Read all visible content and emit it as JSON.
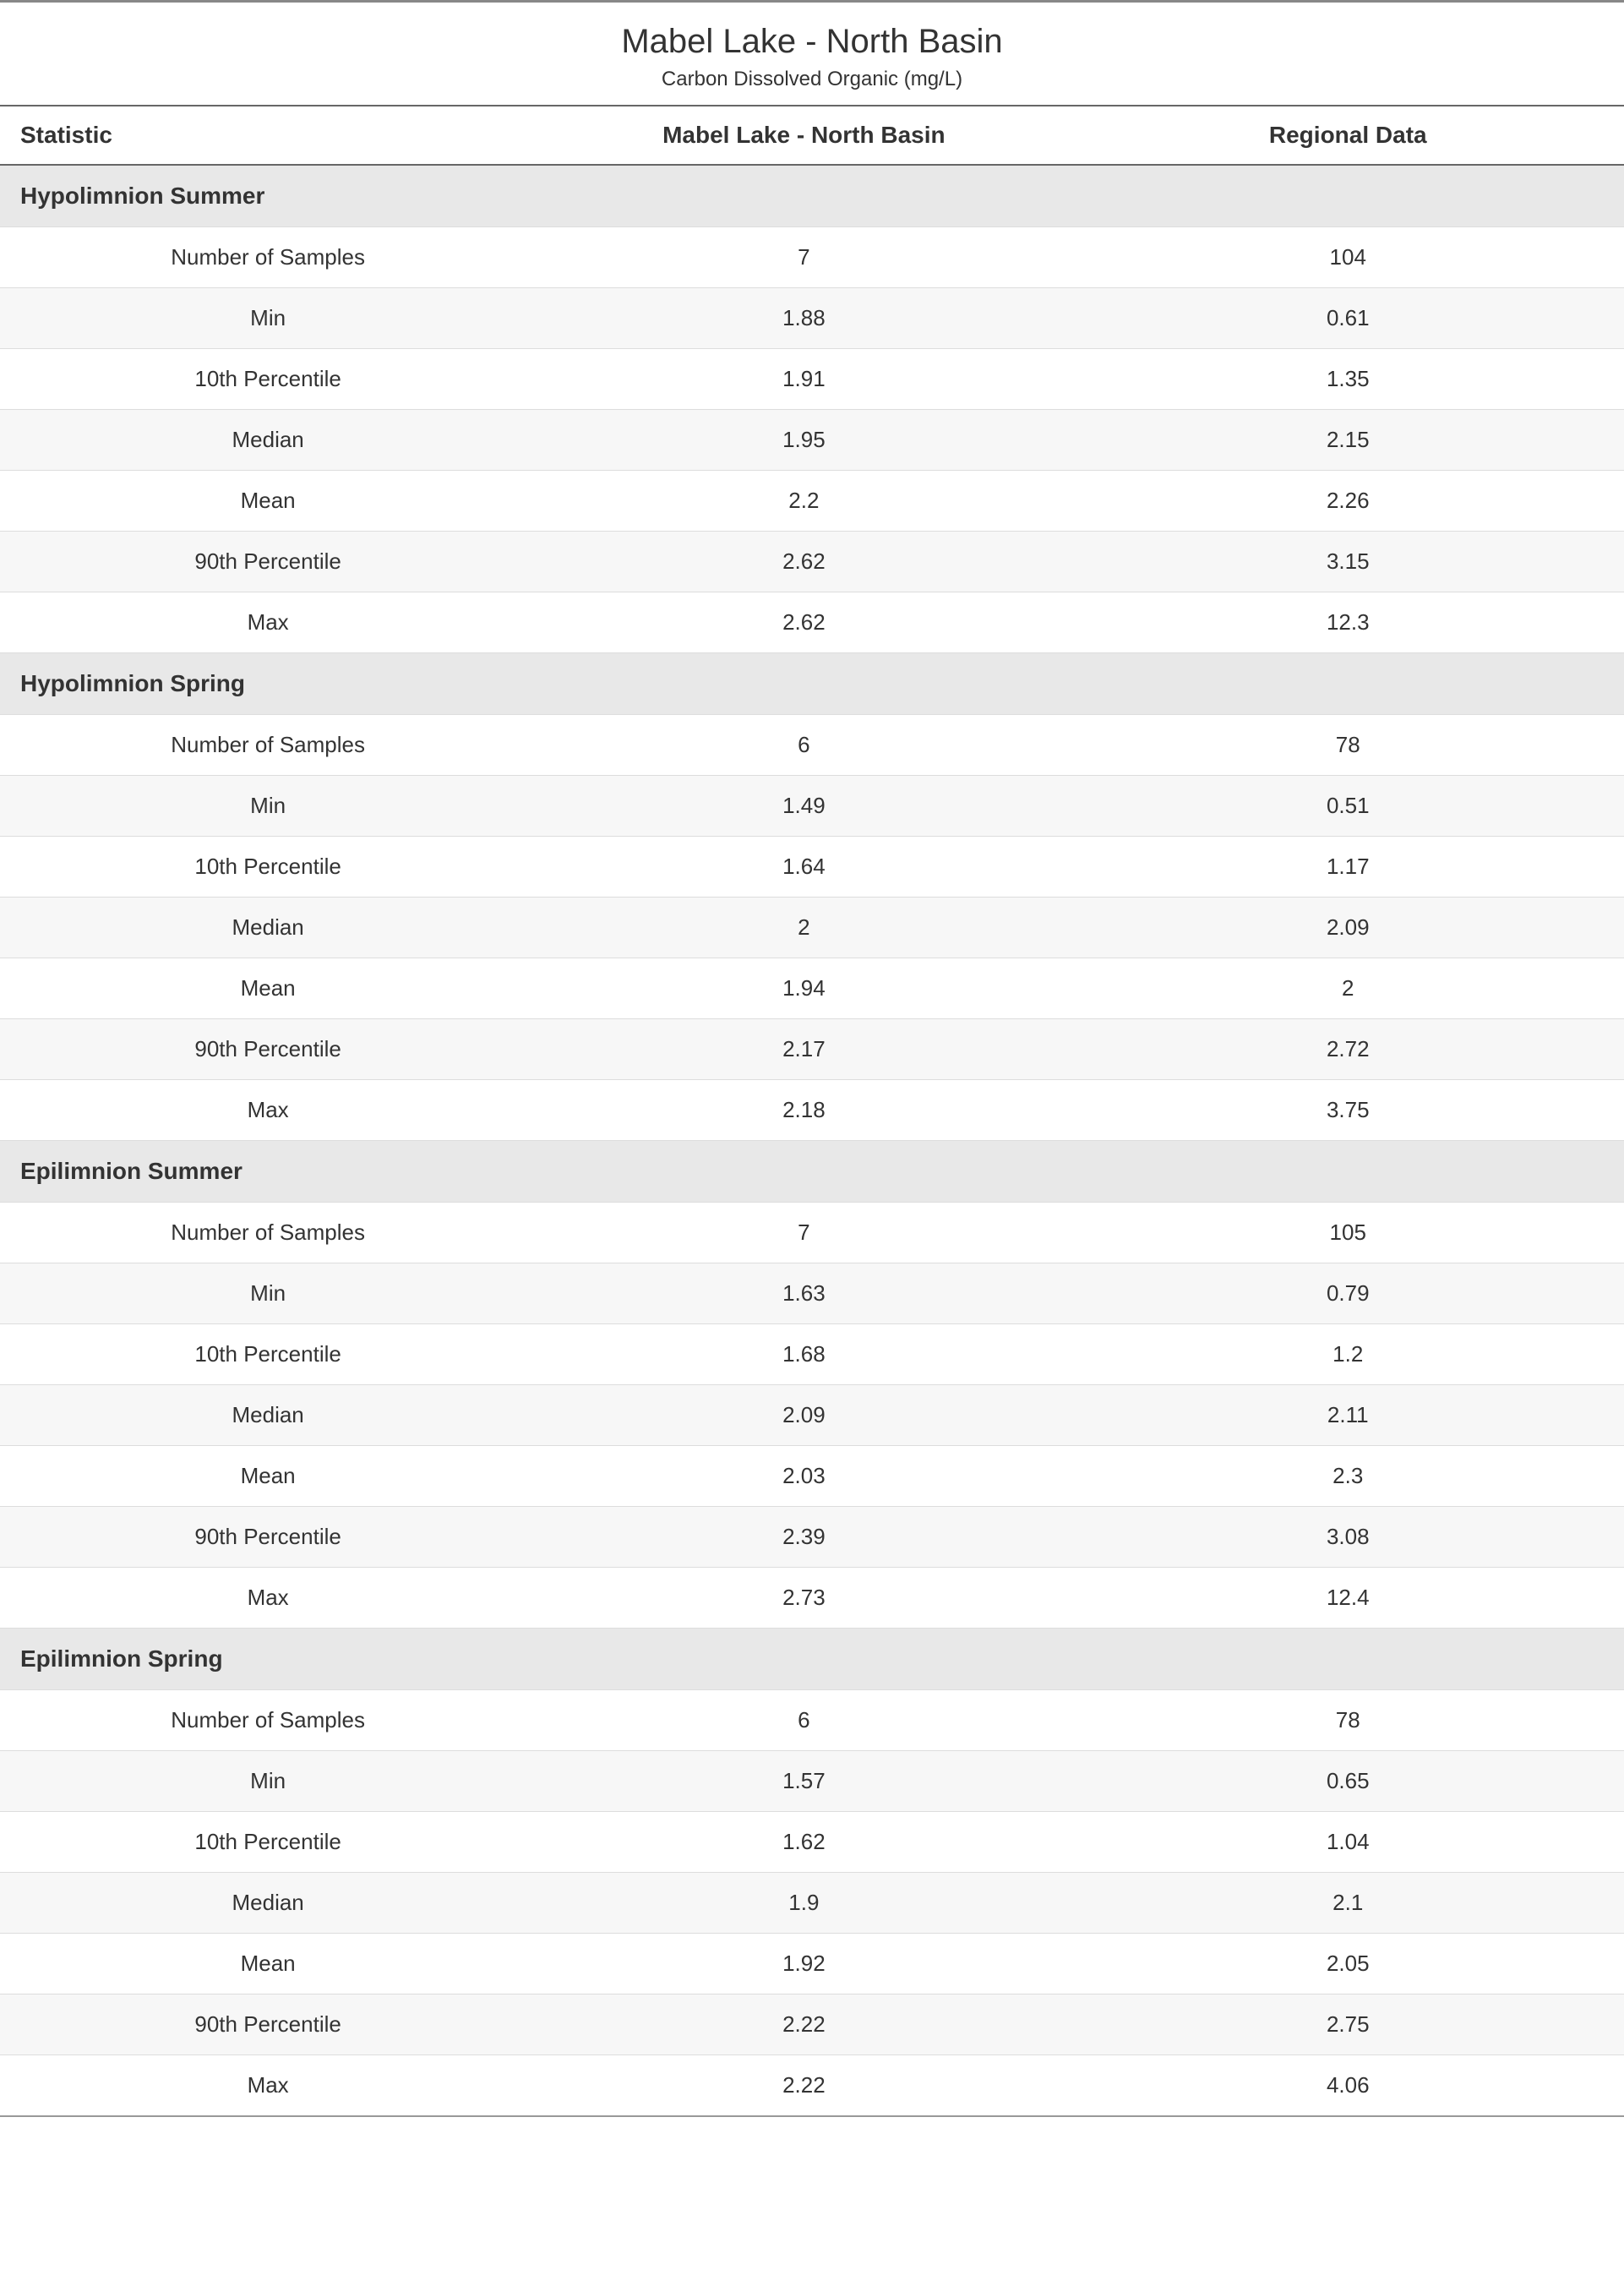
{
  "header": {
    "title": "Mabel Lake - North Basin",
    "subtitle": "Carbon Dissolved Organic (mg/L)"
  },
  "columns": {
    "statistic": "Statistic",
    "basin": "Mabel Lake - North Basin",
    "regional": "Regional Data"
  },
  "colors": {
    "border_top": "#888888",
    "header_rule": "#666666",
    "row_border": "#dddddd",
    "section_bg": "#e8e8e8",
    "row_alt_bg": "#f7f7f7",
    "row_bg": "#ffffff",
    "text": "#333333",
    "bottom_rule": "#999999"
  },
  "typography": {
    "title_fontsize": 40,
    "subtitle_fontsize": 24,
    "header_fontsize": 28,
    "section_fontsize": 28,
    "cell_fontsize": 26,
    "font_family": "Segoe UI"
  },
  "stat_labels": {
    "samples": "Number of Samples",
    "min": "Min",
    "p10": "10th Percentile",
    "median": "Median",
    "mean": "Mean",
    "p90": "90th Percentile",
    "max": "Max"
  },
  "sections": [
    {
      "name": "Hypolimnion Summer",
      "rows": [
        {
          "stat": "samples",
          "basin": "7",
          "regional": "104"
        },
        {
          "stat": "min",
          "basin": "1.88",
          "regional": "0.61"
        },
        {
          "stat": "p10",
          "basin": "1.91",
          "regional": "1.35"
        },
        {
          "stat": "median",
          "basin": "1.95",
          "regional": "2.15"
        },
        {
          "stat": "mean",
          "basin": "2.2",
          "regional": "2.26"
        },
        {
          "stat": "p90",
          "basin": "2.62",
          "regional": "3.15"
        },
        {
          "stat": "max",
          "basin": "2.62",
          "regional": "12.3"
        }
      ]
    },
    {
      "name": "Hypolimnion Spring",
      "rows": [
        {
          "stat": "samples",
          "basin": "6",
          "regional": "78"
        },
        {
          "stat": "min",
          "basin": "1.49",
          "regional": "0.51"
        },
        {
          "stat": "p10",
          "basin": "1.64",
          "regional": "1.17"
        },
        {
          "stat": "median",
          "basin": "2",
          "regional": "2.09"
        },
        {
          "stat": "mean",
          "basin": "1.94",
          "regional": "2"
        },
        {
          "stat": "p90",
          "basin": "2.17",
          "regional": "2.72"
        },
        {
          "stat": "max",
          "basin": "2.18",
          "regional": "3.75"
        }
      ]
    },
    {
      "name": "Epilimnion Summer",
      "rows": [
        {
          "stat": "samples",
          "basin": "7",
          "regional": "105"
        },
        {
          "stat": "min",
          "basin": "1.63",
          "regional": "0.79"
        },
        {
          "stat": "p10",
          "basin": "1.68",
          "regional": "1.2"
        },
        {
          "stat": "median",
          "basin": "2.09",
          "regional": "2.11"
        },
        {
          "stat": "mean",
          "basin": "2.03",
          "regional": "2.3"
        },
        {
          "stat": "p90",
          "basin": "2.39",
          "regional": "3.08"
        },
        {
          "stat": "max",
          "basin": "2.73",
          "regional": "12.4"
        }
      ]
    },
    {
      "name": "Epilimnion Spring",
      "rows": [
        {
          "stat": "samples",
          "basin": "6",
          "regional": "78"
        },
        {
          "stat": "min",
          "basin": "1.57",
          "regional": "0.65"
        },
        {
          "stat": "p10",
          "basin": "1.62",
          "regional": "1.04"
        },
        {
          "stat": "median",
          "basin": "1.9",
          "regional": "2.1"
        },
        {
          "stat": "mean",
          "basin": "1.92",
          "regional": "2.05"
        },
        {
          "stat": "p90",
          "basin": "2.22",
          "regional": "2.75"
        },
        {
          "stat": "max",
          "basin": "2.22",
          "regional": "4.06"
        }
      ]
    }
  ]
}
